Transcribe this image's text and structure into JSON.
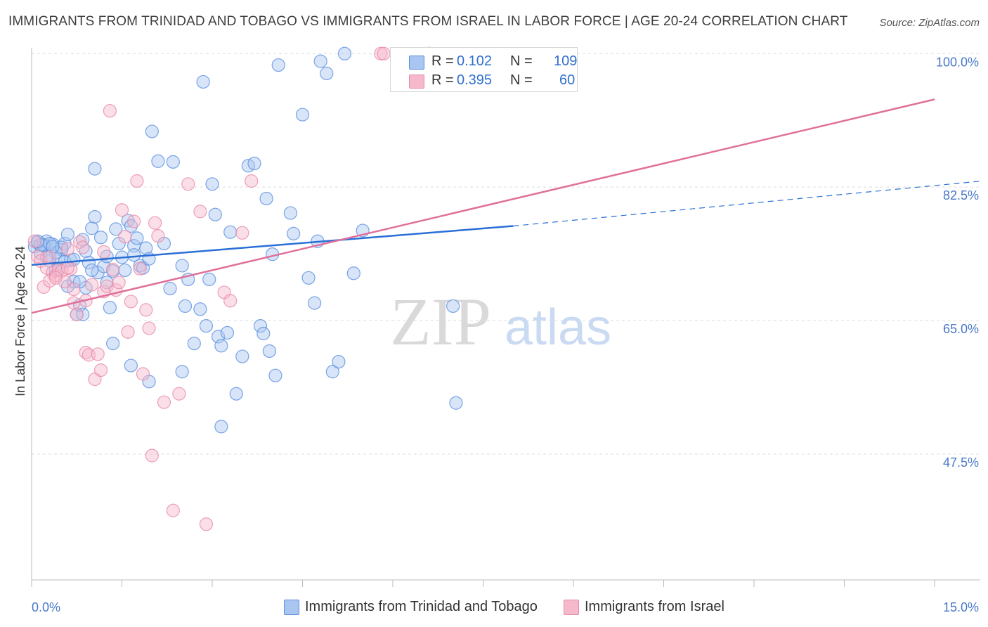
{
  "title": "IMMIGRANTS FROM TRINIDAD AND TOBAGO VS IMMIGRANTS FROM ISRAEL IN LABOR FORCE | AGE 20-24 CORRELATION CHART",
  "source": "Source: ZipAtlas.com",
  "watermark": {
    "zip": "ZIP",
    "atlas": "atlas"
  },
  "legend": {
    "rows": [
      {
        "r_label": "R =",
        "r_value": "0.102",
        "n_label": "N =",
        "n_value": "109"
      },
      {
        "r_label": "R =",
        "r_value": "0.395",
        "n_label": "N =",
        "n_value": "60"
      }
    ]
  },
  "colors": {
    "blue_fill": "#a9c6f0",
    "blue_stroke": "#5a8ee0",
    "blue_line": "#2a6fd6",
    "pink_fill": "#f6b8cb",
    "pink_stroke": "#e88aa8",
    "pink_line": "#e0709a",
    "axis_label": "#4a78c8",
    "grid": "#dddddd"
  },
  "chart_data": {
    "type": "scatter",
    "xlabel": "",
    "ylabel": "In Labor Force | Age 20-24",
    "xlim": [
      0,
      15
    ],
    "ylim": [
      31,
      101.5
    ],
    "x_tick_labels": [
      "0.0%",
      "15.0%"
    ],
    "y_ticks": [
      47.5,
      65.0,
      82.5,
      100.0
    ],
    "y_tick_labels": [
      "47.5%",
      "65.0%",
      "82.5%",
      "100.0%"
    ],
    "grid": true,
    "series": [
      {
        "name": "Immigrants from Trinidad and Tobago",
        "color": "blue",
        "r": 0.102,
        "n": 109,
        "trend": {
          "x0": 0,
          "y0": 72.3,
          "x1": 8.0,
          "y1": 77.4,
          "dashed_to_x": 15,
          "dashed_to_y": 82.7
        },
        "points": [
          [
            0.05,
            74.7
          ],
          [
            0.1,
            75.2
          ],
          [
            0.15,
            73.8
          ],
          [
            0.2,
            74.9
          ],
          [
            0.25,
            75.4
          ],
          [
            0.3,
            72.8
          ],
          [
            0.35,
            75.0
          ],
          [
            0.4,
            71.6
          ],
          [
            0.45,
            73.1
          ],
          [
            0.5,
            74.3
          ],
          [
            0.55,
            75.1
          ],
          [
            0.6,
            69.5
          ],
          [
            0.65,
            72.9
          ],
          [
            0.7,
            70.1
          ],
          [
            0.75,
            65.8
          ],
          [
            0.8,
            67.0
          ],
          [
            0.85,
            75.6
          ],
          [
            0.9,
            74.1
          ],
          [
            0.95,
            72.6
          ],
          [
            1.0,
            77.1
          ],
          [
            1.05,
            78.6
          ],
          [
            1.1,
            71.3
          ],
          [
            1.15,
            75.9
          ],
          [
            1.2,
            72.1
          ],
          [
            1.25,
            70.0
          ],
          [
            1.3,
            66.7
          ],
          [
            1.35,
            71.5
          ],
          [
            1.4,
            77.0
          ],
          [
            1.45,
            75.1
          ],
          [
            1.5,
            73.3
          ],
          [
            1.55,
            71.6
          ],
          [
            1.6,
            78.1
          ],
          [
            1.65,
            77.4
          ],
          [
            1.7,
            74.8
          ],
          [
            1.75,
            75.8
          ],
          [
            1.8,
            72.2
          ],
          [
            1.85,
            71.9
          ],
          [
            1.9,
            74.5
          ],
          [
            1.95,
            73.1
          ],
          [
            2.0,
            89.8
          ],
          [
            2.1,
            85.9
          ],
          [
            2.2,
            75.1
          ],
          [
            2.3,
            69.2
          ],
          [
            2.35,
            85.8
          ],
          [
            2.5,
            72.2
          ],
          [
            2.55,
            66.9
          ],
          [
            2.6,
            70.4
          ],
          [
            2.7,
            62.0
          ],
          [
            2.8,
            66.5
          ],
          [
            2.85,
            96.3
          ],
          [
            2.9,
            64.3
          ],
          [
            2.95,
            70.4
          ],
          [
            3.0,
            82.9
          ],
          [
            3.05,
            78.9
          ],
          [
            3.1,
            62.9
          ],
          [
            3.15,
            61.7
          ],
          [
            3.25,
            63.4
          ],
          [
            3.3,
            76.6
          ],
          [
            3.4,
            55.4
          ],
          [
            3.5,
            60.3
          ],
          [
            3.6,
            85.3
          ],
          [
            3.7,
            85.6
          ],
          [
            3.8,
            64.3
          ],
          [
            3.85,
            63.3
          ],
          [
            3.9,
            81.0
          ],
          [
            3.95,
            61.0
          ],
          [
            4.0,
            73.7
          ],
          [
            4.05,
            57.8
          ],
          [
            4.1,
            98.5
          ],
          [
            4.3,
            79.1
          ],
          [
            4.35,
            76.4
          ],
          [
            4.5,
            92.0
          ],
          [
            4.6,
            70.6
          ],
          [
            4.7,
            67.3
          ],
          [
            4.75,
            75.4
          ],
          [
            4.8,
            99.0
          ],
          [
            4.9,
            97.4
          ],
          [
            5.0,
            58.3
          ],
          [
            5.1,
            59.6
          ],
          [
            5.2,
            100.0
          ],
          [
            5.35,
            71.2
          ],
          [
            5.5,
            76.8
          ],
          [
            0.6,
            76.3
          ],
          [
            1.05,
            84.9
          ],
          [
            1.35,
            62.0
          ],
          [
            1.65,
            59.1
          ],
          [
            1.95,
            57.0
          ],
          [
            2.5,
            58.3
          ],
          [
            3.15,
            51.1
          ],
          [
            0.2,
            74.9
          ],
          [
            0.4,
            73.9
          ],
          [
            0.55,
            72.7
          ],
          [
            0.9,
            69.3
          ],
          [
            1.25,
            73.4
          ],
          [
            1.7,
            73.6
          ],
          [
            0.15,
            74.9
          ],
          [
            0.3,
            75.1
          ],
          [
            0.45,
            71.7
          ],
          [
            0.7,
            73.0
          ],
          [
            0.85,
            65.8
          ],
          [
            0.25,
            73.3
          ],
          [
            0.5,
            74.6
          ],
          [
            0.8,
            70.1
          ],
          [
            1.0,
            71.6
          ],
          [
            0.1,
            75.4
          ],
          [
            0.35,
            74.7
          ],
          [
            7.0,
            66.9
          ],
          [
            7.05,
            54.2
          ],
          [
            6.6,
            100.0
          ]
        ]
      },
      {
        "name": "Immigrants from Israel",
        "color": "pink",
        "r": 0.395,
        "n": 60,
        "trend": {
          "x0": 0,
          "y0": 66.0,
          "x1": 15,
          "y1": 94.0
        },
        "points": [
          [
            0.05,
            75.4
          ],
          [
            0.1,
            73.4
          ],
          [
            0.15,
            72.8
          ],
          [
            0.2,
            69.4
          ],
          [
            0.25,
            71.9
          ],
          [
            0.3,
            73.3
          ],
          [
            0.35,
            71.3
          ],
          [
            0.4,
            70.9
          ],
          [
            0.45,
            71.7
          ],
          [
            0.5,
            71.5
          ],
          [
            0.55,
            70.1
          ],
          [
            0.6,
            74.4
          ],
          [
            0.65,
            71.8
          ],
          [
            0.7,
            67.3
          ],
          [
            0.75,
            65.8
          ],
          [
            0.8,
            75.3
          ],
          [
            0.85,
            74.6
          ],
          [
            0.9,
            60.8
          ],
          [
            0.95,
            60.5
          ],
          [
            1.0,
            69.7
          ],
          [
            1.05,
            57.3
          ],
          [
            1.1,
            60.6
          ],
          [
            1.15,
            58.5
          ],
          [
            1.2,
            68.8
          ],
          [
            1.25,
            69.5
          ],
          [
            1.3,
            92.5
          ],
          [
            1.35,
            71.7
          ],
          [
            1.4,
            69.0
          ],
          [
            1.45,
            70.0
          ],
          [
            1.5,
            79.5
          ],
          [
            1.55,
            76.0
          ],
          [
            1.6,
            63.5
          ],
          [
            1.65,
            67.5
          ],
          [
            1.7,
            78.0
          ],
          [
            1.75,
            83.3
          ],
          [
            1.8,
            71.8
          ],
          [
            1.85,
            58.0
          ],
          [
            1.9,
            66.4
          ],
          [
            1.95,
            64.0
          ],
          [
            2.0,
            47.3
          ],
          [
            2.05,
            77.8
          ],
          [
            2.1,
            76.1
          ],
          [
            2.2,
            54.3
          ],
          [
            2.35,
            40.1
          ],
          [
            2.45,
            55.4
          ],
          [
            2.6,
            82.9
          ],
          [
            2.8,
            79.3
          ],
          [
            3.2,
            68.7
          ],
          [
            3.3,
            67.6
          ],
          [
            3.5,
            76.5
          ],
          [
            2.9,
            38.3
          ],
          [
            3.65,
            83.3
          ],
          [
            5.8,
            100.0
          ],
          [
            5.85,
            100.0
          ],
          [
            0.3,
            70.2
          ],
          [
            0.6,
            71.9
          ],
          [
            0.9,
            67.6
          ],
          [
            1.2,
            74.0
          ],
          [
            0.4,
            70.6
          ],
          [
            0.7,
            69.1
          ]
        ]
      }
    ]
  }
}
